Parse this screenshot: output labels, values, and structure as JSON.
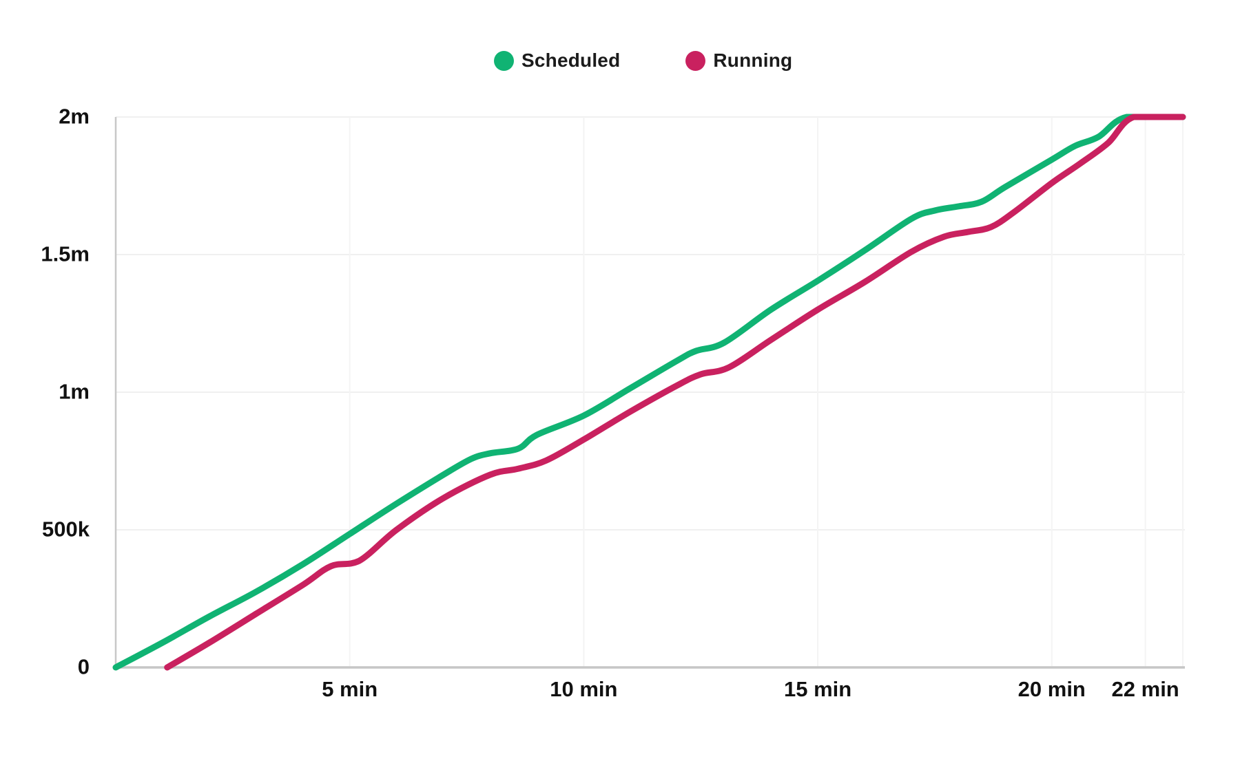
{
  "chart_data": {
    "type": "line",
    "title": "",
    "xlabel": "",
    "ylabel": "",
    "x_unit": "min",
    "xlim": [
      0,
      22.8
    ],
    "ylim": [
      0,
      2000000
    ],
    "grid": true,
    "legend_position": "top-center",
    "background_color": "#ffffff",
    "grid_color_h": "#f0f0f0",
    "grid_color_v": "#f4f4f4",
    "axis_color": "#c6c6c6",
    "tick_text_color": "#111111",
    "x_ticks": [
      {
        "label": "5 min",
        "value": 5
      },
      {
        "label": "10 min",
        "value": 10
      },
      {
        "label": "15 min",
        "value": 15
      },
      {
        "label": "20 min",
        "value": 20
      },
      {
        "label": "22 min",
        "value": 22
      }
    ],
    "y_ticks": [
      {
        "label": "0",
        "value": 0
      },
      {
        "label": "500k",
        "value": 500000
      },
      {
        "label": "1m",
        "value": 1000000
      },
      {
        "label": "1.5m",
        "value": 1500000
      },
      {
        "label": "2m",
        "value": 2000000
      }
    ],
    "series": [
      {
        "name": "Scheduled",
        "color": "#10b373",
        "points": [
          [
            0,
            0
          ],
          [
            1,
            90000
          ],
          [
            2,
            185000
          ],
          [
            3,
            275000
          ],
          [
            4,
            375000
          ],
          [
            5,
            485000
          ],
          [
            6,
            595000
          ],
          [
            7,
            700000
          ],
          [
            7.6,
            758000
          ],
          [
            8,
            778000
          ],
          [
            8.6,
            795000
          ],
          [
            9,
            845000
          ],
          [
            10,
            915000
          ],
          [
            11,
            1015000
          ],
          [
            12,
            1115000
          ],
          [
            12.4,
            1150000
          ],
          [
            13,
            1180000
          ],
          [
            14,
            1300000
          ],
          [
            15,
            1405000
          ],
          [
            16,
            1515000
          ],
          [
            17,
            1630000
          ],
          [
            17.5,
            1660000
          ],
          [
            18,
            1675000
          ],
          [
            18.5,
            1692000
          ],
          [
            19,
            1745000
          ],
          [
            20,
            1845000
          ],
          [
            20.5,
            1895000
          ],
          [
            21,
            1928000
          ],
          [
            21.6,
            2000000
          ],
          [
            22.8,
            2000000
          ]
        ]
      },
      {
        "name": "Running",
        "color": "#c9215f",
        "points": [
          [
            1.1,
            0
          ],
          [
            2,
            90000
          ],
          [
            3,
            195000
          ],
          [
            4,
            300000
          ],
          [
            4.6,
            368000
          ],
          [
            5.2,
            387000
          ],
          [
            6,
            500000
          ],
          [
            7,
            615000
          ],
          [
            8,
            700000
          ],
          [
            8.6,
            722000
          ],
          [
            9.2,
            752000
          ],
          [
            10,
            828000
          ],
          [
            11,
            930000
          ],
          [
            12,
            1025000
          ],
          [
            12.5,
            1065000
          ],
          [
            13.1,
            1090000
          ],
          [
            14,
            1190000
          ],
          [
            15,
            1300000
          ],
          [
            16,
            1400000
          ],
          [
            17,
            1510000
          ],
          [
            17.7,
            1565000
          ],
          [
            18.2,
            1582000
          ],
          [
            18.7,
            1600000
          ],
          [
            19.2,
            1655000
          ],
          [
            20,
            1760000
          ],
          [
            20.6,
            1830000
          ],
          [
            21.2,
            1905000
          ],
          [
            21.75,
            2000000
          ],
          [
            22.8,
            2000000
          ]
        ]
      }
    ]
  }
}
